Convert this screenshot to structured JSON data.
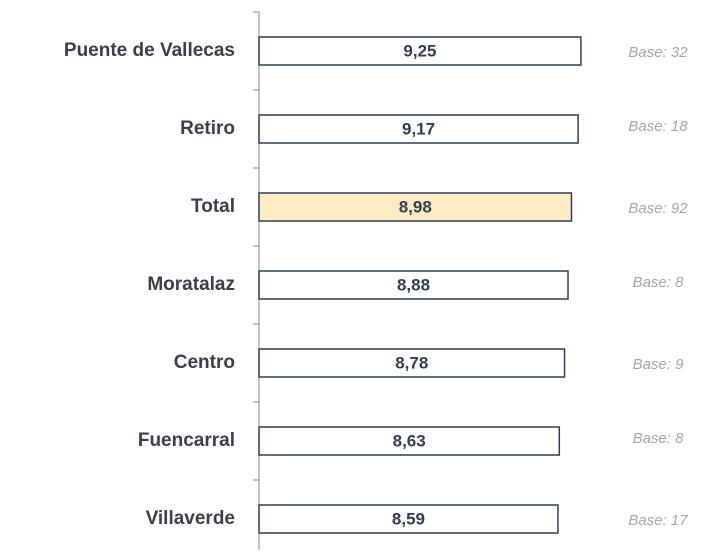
{
  "chart_data": {
    "type": "barh",
    "categories": [
      "Puente de Vallecas",
      "Retiro",
      "Total",
      "Moratalaz",
      "Centro",
      "Fuencarral",
      "Villaverde"
    ],
    "values": [
      9.25,
      9.17,
      8.98,
      8.88,
      8.78,
      8.63,
      8.59
    ],
    "value_labels": [
      "9,25",
      "9,17",
      "8,98",
      "8,88",
      "8,78",
      "8,63",
      "8,59"
    ],
    "colors": [
      "#ffffff",
      "#ffffff",
      "#fdebc4",
      "#ffffff",
      "#ffffff",
      "#ffffff",
      "#ffffff"
    ],
    "edge_color": "#2f3e56",
    "annotations": [
      "Base: 32",
      "Base: 18",
      "Base: 92",
      "Base: 8",
      "Base: 9",
      "Base: 8",
      "Base: 17"
    ],
    "xlim": [
      0,
      10
    ]
  }
}
